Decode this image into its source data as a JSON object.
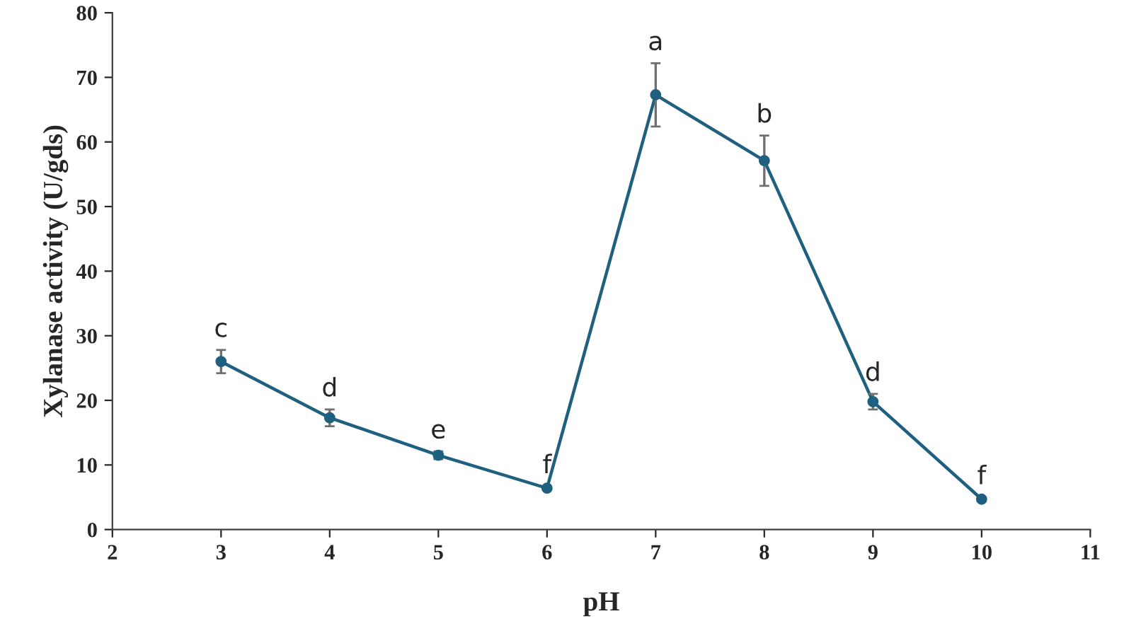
{
  "chart_data": {
    "type": "line",
    "xlabel": "pH",
    "ylabel": "Xylanase activity (U/gds)",
    "x": [
      3,
      4,
      5,
      6,
      7,
      8,
      9,
      10
    ],
    "series": [
      {
        "color": "#1f5f7f",
        "values": [
          26,
          17.3,
          11.5,
          6.4,
          67.3,
          57.1,
          19.8,
          4.7
        ],
        "errors": [
          1.8,
          1.3,
          0.6,
          0.3,
          4.9,
          3.9,
          1.2,
          0.3
        ]
      }
    ],
    "annotations": [
      {
        "text": "c",
        "x": 3,
        "y": 26
      },
      {
        "text": "d",
        "x": 4,
        "y": 17.3
      },
      {
        "text": "e",
        "x": 5,
        "y": 11.5
      },
      {
        "text": "f",
        "x": 6,
        "y": 6.4
      },
      {
        "text": "a",
        "x": 7,
        "y": 67.3
      },
      {
        "text": "b",
        "x": 8,
        "y": 57.1
      },
      {
        "text": "d",
        "x": 9,
        "y": 19.8
      },
      {
        "text": "f",
        "x": 10,
        "y": 4.7
      }
    ],
    "xlim": [
      2,
      11
    ],
    "xticks": [
      2,
      3,
      4,
      5,
      6,
      7,
      8,
      9,
      10,
      11
    ],
    "ylim": [
      0,
      80
    ],
    "yticks": [
      0,
      10,
      20,
      30,
      40,
      50,
      60,
      70,
      80
    ],
    "grid": false,
    "legend": false,
    "marker": "circle",
    "line_style": "solid"
  }
}
